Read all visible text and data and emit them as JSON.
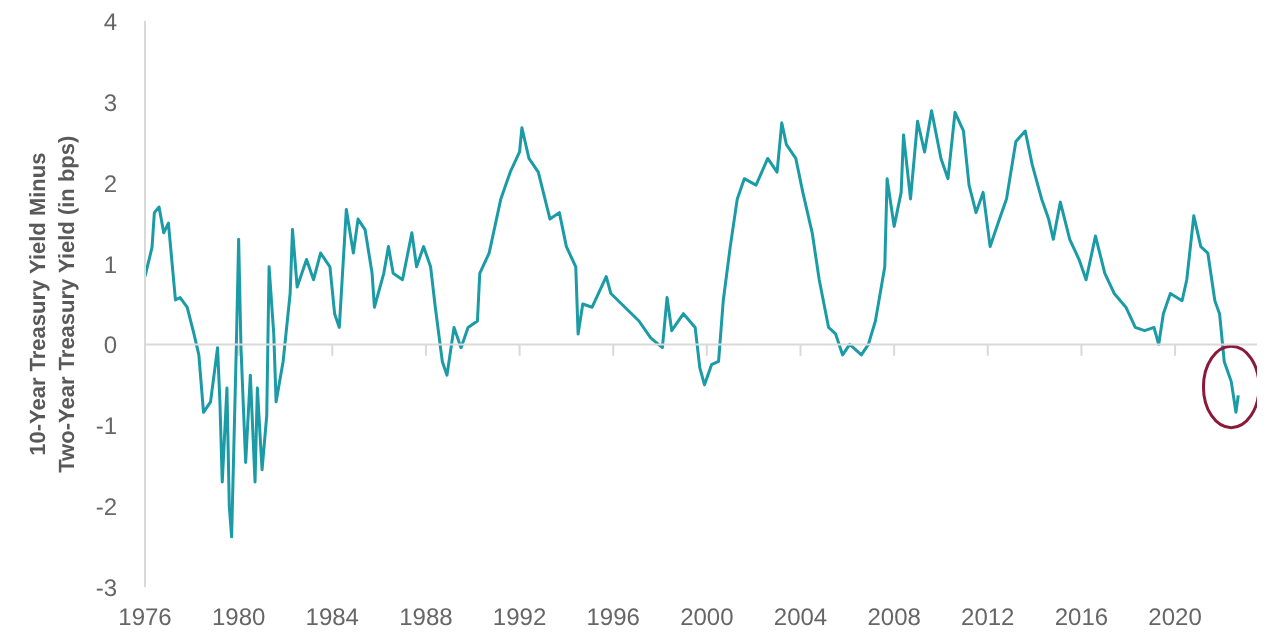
{
  "chart_data": {
    "type": "line",
    "ylabel": "10-Year Treasury Yield Minus\nTwo-Year Treasury Yield (in bps)",
    "xlim": [
      1976,
      2023.5
    ],
    "ylim": [
      -3,
      4
    ],
    "xticks": [
      1976,
      1980,
      1984,
      1988,
      1992,
      1996,
      2000,
      2004,
      2008,
      2012,
      2016,
      2020
    ],
    "yticks": [
      -3,
      -2,
      -1,
      0,
      1,
      2,
      3,
      4
    ],
    "grid": false,
    "ref_lines": [
      {
        "axis": "y",
        "value": 0,
        "color": "#d9d9d9"
      }
    ],
    "series": [
      {
        "color": "#1a9ba6",
        "x": [
          1976.0,
          1976.3,
          1976.4,
          1976.6,
          1976.8,
          1977.0,
          1977.3,
          1977.5,
          1977.8,
          1978.1,
          1978.3,
          1978.5,
          1978.8,
          1979.1,
          1979.2,
          1979.3,
          1979.5,
          1979.6,
          1979.7,
          1979.9,
          1980.0,
          1980.1,
          1980.3,
          1980.5,
          1980.7,
          1980.8,
          1981.0,
          1981.2,
          1981.3,
          1981.5,
          1981.6,
          1981.9,
          1982.2,
          1982.3,
          1982.5,
          1982.9,
          1983.2,
          1983.5,
          1983.9,
          1984.1,
          1984.3,
          1984.6,
          1984.9,
          1985.1,
          1985.4,
          1985.7,
          1985.8,
          1986.2,
          1986.4,
          1986.6,
          1987.0,
          1987.4,
          1987.6,
          1987.9,
          1988.2,
          1988.4,
          1988.7,
          1988.9,
          1989.2,
          1989.5,
          1989.8,
          1990.2,
          1990.3,
          1990.7,
          1991.2,
          1991.6,
          1992.0,
          1992.1,
          1992.4,
          1992.8,
          1993.3,
          1993.7,
          1994.0,
          1994.4,
          1994.5,
          1994.7,
          1995.1,
          1995.7,
          1995.9,
          1996.5,
          1997.1,
          1997.6,
          1998.1,
          1998.3,
          1998.5,
          1999.0,
          1999.5,
          1999.7,
          1999.9,
          2000.2,
          2000.5,
          2000.7,
          2001.0,
          2001.3,
          2001.6,
          2002.1,
          2002.6,
          2003.0,
          2003.2,
          2003.4,
          2003.8,
          2004.1,
          2004.5,
          2004.8,
          2005.2,
          2005.5,
          2005.8,
          2006.1,
          2006.6,
          2006.9,
          2007.2,
          2007.6,
          2007.7,
          2008.0,
          2008.3,
          2008.4,
          2008.7,
          2009.0,
          2009.3,
          2009.6,
          2010.0,
          2010.3,
          2010.6,
          2010.96,
          2011.2,
          2011.5,
          2011.8,
          2012.1,
          2012.5,
          2012.8,
          2013.2,
          2013.6,
          2013.9,
          2014.3,
          2014.6,
          2014.8,
          2015.1,
          2015.5,
          2015.9,
          2016.2,
          2016.6,
          2017.0,
          2017.4,
          2017.9,
          2018.3,
          2018.7,
          2019.1,
          2019.3,
          2019.5,
          2019.8,
          2020.3,
          2020.5,
          2020.8,
          2021.1,
          2021.4,
          2021.7,
          2021.9,
          2022.1,
          2022.4,
          2022.6,
          2022.7
        ],
        "values": [
          0.84,
          1.2,
          1.63,
          1.7,
          1.38,
          1.5,
          0.55,
          0.58,
          0.46,
          0.12,
          -0.13,
          -0.84,
          -0.71,
          -0.04,
          -0.71,
          -1.7,
          -0.54,
          -2.0,
          -2.38,
          -0.04,
          1.3,
          -0.04,
          -1.46,
          -0.38,
          -1.7,
          -0.54,
          -1.55,
          -0.88,
          0.96,
          0.13,
          -0.71,
          -0.21,
          0.63,
          1.42,
          0.71,
          1.05,
          0.8,
          1.13,
          0.96,
          0.38,
          0.21,
          1.67,
          1.13,
          1.55,
          1.42,
          0.88,
          0.46,
          0.88,
          1.21,
          0.88,
          0.8,
          1.38,
          0.96,
          1.21,
          0.96,
          0.46,
          -0.21,
          -0.38,
          0.21,
          -0.04,
          0.21,
          0.29,
          0.88,
          1.13,
          1.8,
          2.13,
          2.38,
          2.68,
          2.3,
          2.13,
          1.55,
          1.63,
          1.21,
          0.96,
          0.13,
          0.5,
          0.46,
          0.84,
          0.63,
          0.46,
          0.29,
          0.08,
          -0.04,
          0.58,
          0.17,
          0.38,
          0.21,
          -0.29,
          -0.5,
          -0.25,
          -0.21,
          0.54,
          1.21,
          1.8,
          2.05,
          1.97,
          2.3,
          2.13,
          2.74,
          2.47,
          2.3,
          1.88,
          1.38,
          0.8,
          0.21,
          0.13,
          -0.13,
          0.0,
          -0.13,
          0.0,
          0.29,
          0.96,
          2.05,
          1.46,
          1.88,
          2.59,
          1.8,
          2.76,
          2.38,
          2.89,
          2.3,
          2.05,
          2.87,
          2.64,
          1.97,
          1.63,
          1.88,
          1.21,
          1.55,
          1.8,
          2.51,
          2.64,
          2.22,
          1.8,
          1.55,
          1.3,
          1.76,
          1.3,
          1.05,
          0.8,
          1.34,
          0.88,
          0.63,
          0.46,
          0.21,
          0.17,
          0.21,
          0.0,
          0.38,
          0.63,
          0.54,
          0.8,
          1.59,
          1.21,
          1.13,
          0.54,
          0.38,
          -0.21,
          -0.46,
          -0.84,
          -0.63
        ]
      }
    ]
  }
}
